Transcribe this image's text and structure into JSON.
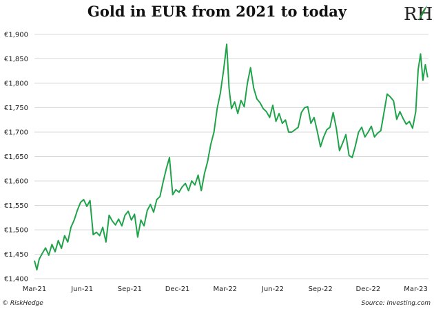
{
  "title": "Gold in EUR from 2021 to today",
  "logo_text": "RH",
  "footer": {
    "left": "© RiskHedge",
    "right": "Source: Investing.com"
  },
  "colors": {
    "line": "#1fa34a",
    "grid": "#d9d9d9",
    "logo_leaf": "#2a8a3a"
  },
  "chart_data": {
    "type": "line",
    "title": "Gold in EUR from 2021 to today",
    "xlabel": "",
    "ylabel": "",
    "grid": "horizontal",
    "legend": "none",
    "x_tick_labels": [
      "Mar-21",
      "Jun-21",
      "Sep-21",
      "Dec-21",
      "Mar-22",
      "Jun-22",
      "Sep-22",
      "Dec-22",
      "Mar-23"
    ],
    "y_tick_labels": [
      "€1,400",
      "€1,450",
      "€1,500",
      "€1,550",
      "€1,600",
      "€1,650",
      "€1,700",
      "€1,750",
      "€1,800",
      "€1,850",
      "€1,900"
    ],
    "y_ticks": [
      1400,
      1450,
      1500,
      1550,
      1600,
      1650,
      1700,
      1750,
      1800,
      1850,
      1900
    ],
    "ylim": [
      1400,
      1900
    ],
    "xlim_months": [
      0,
      24.8
    ],
    "series": [
      {
        "name": "",
        "x_months": [
          0,
          0.15,
          0.3,
          0.5,
          0.7,
          0.9,
          1.1,
          1.3,
          1.5,
          1.7,
          1.9,
          2.1,
          2.3,
          2.5,
          2.7,
          2.9,
          3.1,
          3.3,
          3.5,
          3.7,
          3.9,
          4.1,
          4.3,
          4.5,
          4.7,
          4.9,
          5.1,
          5.3,
          5.5,
          5.7,
          5.9,
          6.1,
          6.3,
          6.5,
          6.7,
          6.9,
          7.1,
          7.3,
          7.5,
          7.7,
          7.9,
          8.1,
          8.3,
          8.5,
          8.7,
          8.9,
          9.1,
          9.3,
          9.5,
          9.7,
          9.9,
          10.1,
          10.3,
          10.5,
          10.7,
          10.9,
          11.1,
          11.3,
          11.5,
          11.7,
          11.9,
          12.1,
          12.25,
          12.4,
          12.6,
          12.8,
          13.0,
          13.2,
          13.4,
          13.6,
          13.8,
          14.0,
          14.2,
          14.4,
          14.6,
          14.8,
          15.0,
          15.2,
          15.4,
          15.6,
          15.8,
          16.0,
          16.2,
          16.4,
          16.6,
          16.8,
          17.0,
          17.2,
          17.4,
          17.6,
          17.8,
          18.0,
          18.2,
          18.4,
          18.6,
          18.8,
          19.0,
          19.2,
          19.4,
          19.6,
          19.8,
          20.0,
          20.2,
          20.4,
          20.6,
          20.8,
          21.0,
          21.2,
          21.4,
          21.6,
          21.8,
          22.0,
          22.2,
          22.4,
          22.6,
          22.8,
          23.0,
          23.2,
          23.4,
          23.6,
          23.8,
          24.0,
          24.15,
          24.3,
          24.45,
          24.6,
          24.75
        ],
        "values": [
          1437,
          1418,
          1440,
          1452,
          1463,
          1448,
          1470,
          1455,
          1478,
          1462,
          1488,
          1475,
          1505,
          1520,
          1540,
          1556,
          1562,
          1548,
          1560,
          1490,
          1495,
          1488,
          1505,
          1475,
          1530,
          1518,
          1510,
          1522,
          1508,
          1530,
          1538,
          1520,
          1532,
          1485,
          1520,
          1508,
          1540,
          1552,
          1536,
          1562,
          1568,
          1598,
          1625,
          1648,
          1572,
          1582,
          1577,
          1588,
          1595,
          1580,
          1600,
          1592,
          1612,
          1580,
          1615,
          1640,
          1675,
          1700,
          1748,
          1780,
          1826,
          1880,
          1790,
          1748,
          1762,
          1738,
          1765,
          1752,
          1800,
          1832,
          1790,
          1768,
          1760,
          1748,
          1742,
          1730,
          1755,
          1722,
          1738,
          1718,
          1725,
          1700,
          1700,
          1705,
          1710,
          1740,
          1750,
          1752,
          1718,
          1730,
          1702,
          1670,
          1690,
          1705,
          1710,
          1740,
          1708,
          1662,
          1678,
          1695,
          1652,
          1648,
          1672,
          1700,
          1710,
          1690,
          1700,
          1712,
          1690,
          1698,
          1703,
          1740,
          1778,
          1772,
          1764,
          1726,
          1742,
          1728,
          1716,
          1722,
          1708,
          1742,
          1828,
          1860,
          1806,
          1838,
          1812
        ]
      }
    ]
  }
}
